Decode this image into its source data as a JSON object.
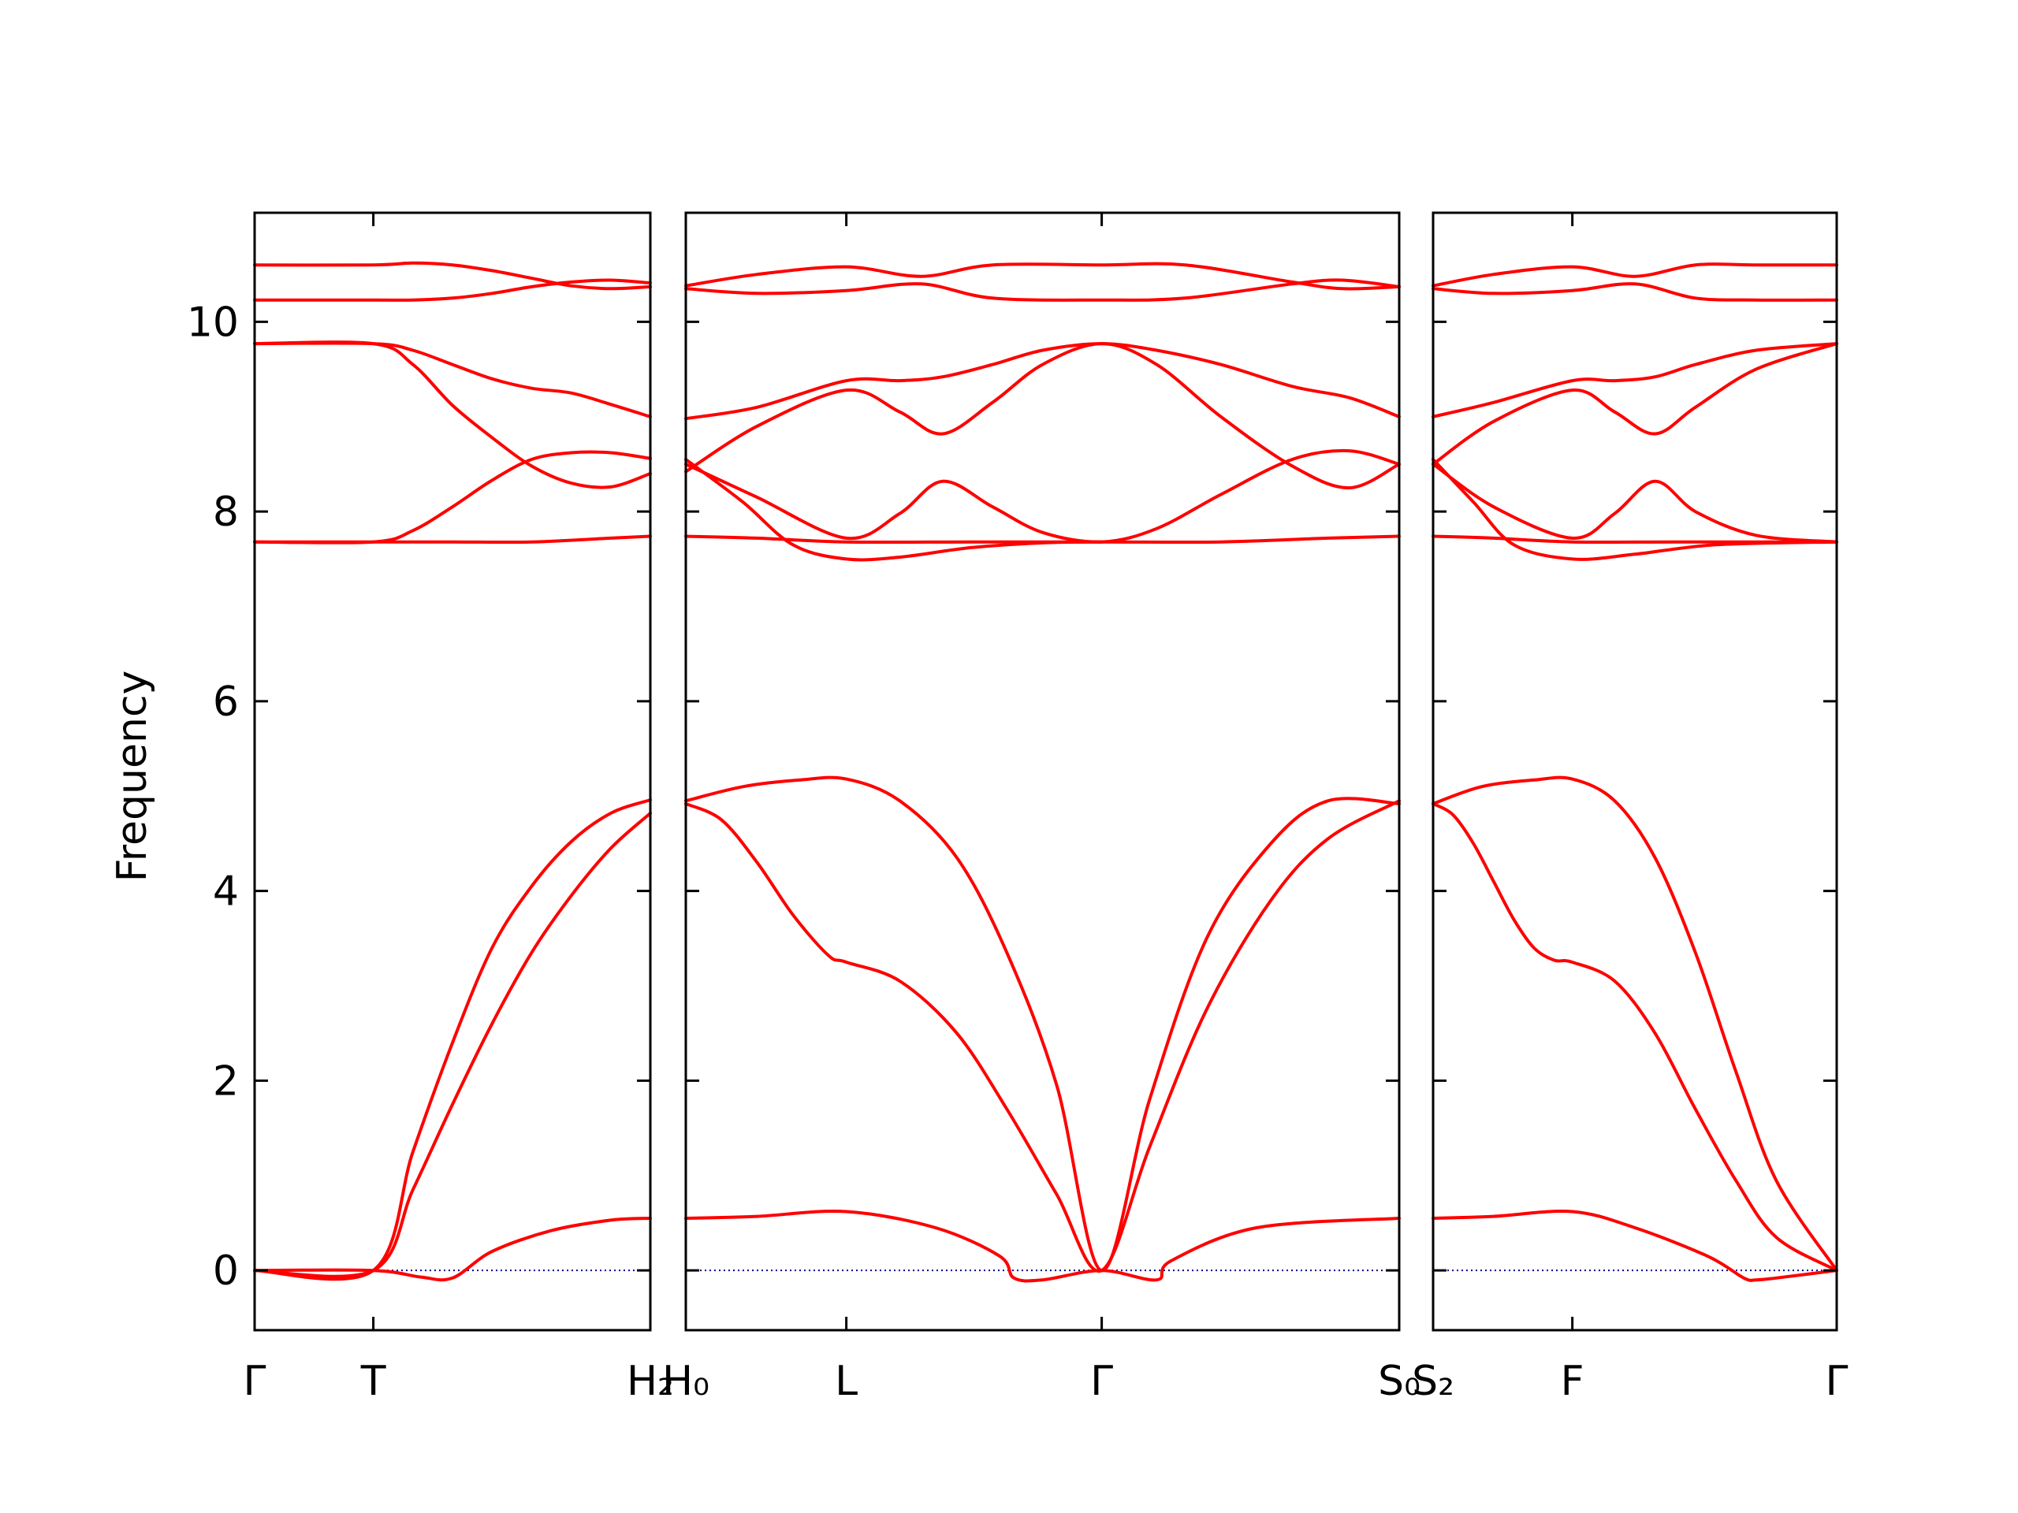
{
  "chart_data": {
    "type": "line",
    "ylabel": "Frequency",
    "ylim": [
      -0.63,
      11.15
    ],
    "yticks": [
      0,
      2,
      4,
      6,
      8,
      10
    ],
    "ytick_labels": [
      "0",
      "2",
      "4",
      "6",
      "8",
      "10"
    ],
    "grid": false,
    "colors": {
      "bands": "#ff0000",
      "zero_line": "#00008b",
      "axes": "#000000"
    },
    "panels": [
      {
        "name": "panel-1",
        "xlim": [
          0,
          1
        ],
        "xticks": [
          0,
          0.3,
          1
        ],
        "xtick_labels": [
          "Γ",
          "T",
          "H₂"
        ],
        "bands": [
          {
            "x": [
              0,
              0.3,
              0.42,
              0.5,
              0.6,
              0.75,
              0.9,
              1
            ],
            "y": [
              0,
              0,
              -0.07,
              -0.08,
              0.2,
              0.42,
              0.53,
              0.55
            ]
          },
          {
            "x": [
              0,
              0.3,
              0.4,
              0.5,
              0.6,
              0.7,
              0.8,
              0.9,
              1
            ],
            "y": [
              0,
              0,
              1.25,
              2.4,
              3.4,
              4.05,
              4.52,
              4.82,
              4.96
            ]
          },
          {
            "x": [
              0,
              0.3,
              0.4,
              0.5,
              0.6,
              0.7,
              0.8,
              0.9,
              1
            ],
            "y": [
              0,
              0,
              0.85,
              1.75,
              2.6,
              3.35,
              3.95,
              4.45,
              4.82
            ]
          },
          {
            "x": [
              0,
              0.3,
              0.5,
              0.7,
              0.9,
              1
            ],
            "y": [
              7.68,
              7.68,
              7.68,
              7.68,
              7.72,
              7.74
            ]
          },
          {
            "x": [
              0,
              0.3,
              0.4,
              0.5,
              0.6,
              0.7,
              0.8,
              0.9,
              1
            ],
            "y": [
              7.68,
              7.68,
              7.8,
              8.05,
              8.33,
              8.55,
              8.62,
              8.62,
              8.56
            ]
          },
          {
            "x": [
              0,
              0.3,
              0.4,
              0.5,
              0.6,
              0.7,
              0.8,
              0.9,
              1
            ],
            "y": [
              9.77,
              9.77,
              9.55,
              9.12,
              8.78,
              8.48,
              8.3,
              8.26,
              8.4
            ]
          },
          {
            "x": [
              0,
              0.3,
              0.4,
              0.5,
              0.6,
              0.7,
              0.8,
              0.9,
              1
            ],
            "y": [
              9.77,
              9.77,
              9.7,
              9.55,
              9.4,
              9.3,
              9.25,
              9.13,
              9.0
            ]
          },
          {
            "x": [
              0,
              0.3,
              0.4,
              0.5,
              0.6,
              0.7,
              0.8,
              0.9,
              1
            ],
            "y": [
              10.23,
              10.23,
              10.23,
              10.25,
              10.3,
              10.37,
              10.42,
              10.44,
              10.41
            ]
          },
          {
            "x": [
              0,
              0.3,
              0.4,
              0.5,
              0.6,
              0.7,
              0.8,
              0.9,
              1
            ],
            "y": [
              10.6,
              10.6,
              10.62,
              10.6,
              10.54,
              10.46,
              10.38,
              10.35,
              10.37
            ]
          }
        ]
      },
      {
        "name": "panel-2",
        "xlim": [
          0,
          1
        ],
        "xticks": [
          0,
          0.225,
          0.583,
          1
        ],
        "xtick_labels": [
          "H₀",
          "L",
          "Γ",
          "S₀"
        ],
        "bands": [
          {
            "x": [
              0,
              0.1,
              0.225,
              0.35,
              0.44,
              0.46,
              0.5,
              0.583,
              0.66,
              0.68,
              0.8,
              1
            ],
            "y": [
              0.55,
              0.57,
              0.62,
              0.45,
              0.15,
              -0.08,
              -0.1,
              0,
              -0.1,
              0.1,
              0.45,
              0.55
            ]
          },
          {
            "x": [
              0,
              0.08,
              0.16,
              0.225,
              0.3,
              0.38,
              0.45,
              0.52,
              0.583,
              0.65,
              0.73,
              0.82,
              0.9,
              1
            ],
            "y": [
              4.95,
              5.1,
              5.17,
              5.18,
              4.95,
              4.35,
              3.35,
              1.95,
              0,
              1.8,
              3.5,
              4.5,
              4.95,
              4.92
            ]
          },
          {
            "x": [
              0,
              0.05,
              0.1,
              0.15,
              0.2,
              0.225,
              0.3,
              0.38,
              0.45,
              0.52,
              0.583,
              0.65,
              0.73,
              0.82,
              0.9,
              1
            ],
            "y": [
              4.92,
              4.75,
              4.3,
              3.75,
              3.32,
              3.25,
              3.05,
              2.5,
              1.7,
              0.8,
              0,
              1.3,
              2.75,
              3.9,
              4.55,
              4.95
            ]
          },
          {
            "x": [
              0,
              0.1,
              0.225,
              0.4,
              0.583,
              0.75,
              0.9,
              1
            ],
            "y": [
              7.74,
              7.72,
              7.68,
              7.68,
              7.68,
              7.68,
              7.72,
              7.74
            ]
          },
          {
            "x": [
              0,
              0.08,
              0.15,
              0.225,
              0.3,
              0.4,
              0.5,
              0.583
            ],
            "y": [
              8.55,
              8.1,
              7.65,
              7.5,
              7.52,
              7.62,
              7.67,
              7.68
            ]
          },
          {
            "x": [
              0,
              0.1,
              0.225,
              0.3,
              0.36,
              0.43,
              0.5,
              0.583,
              0.66,
              0.75,
              0.85,
              0.93,
              1
            ],
            "y": [
              8.42,
              8.9,
              9.28,
              9.05,
              8.82,
              9.15,
              9.55,
              9.77,
              9.55,
              9.0,
              8.48,
              8.25,
              8.5
            ]
          },
          {
            "x": [
              0,
              0.1,
              0.225,
              0.3,
              0.36,
              0.43,
              0.5,
              0.583,
              0.66,
              0.75,
              0.85,
              0.93,
              1
            ],
            "y": [
              8.98,
              9.1,
              9.38,
              9.38,
              9.42,
              9.55,
              9.7,
              9.77,
              9.7,
              9.55,
              9.32,
              9.2,
              9.0
            ]
          },
          {
            "x": [
              0,
              0.1,
              0.225,
              0.3,
              0.36,
              0.43,
              0.5,
              0.583,
              0.66,
              0.75,
              0.85,
              0.93,
              1
            ],
            "y": [
              8.5,
              8.15,
              7.72,
              7.98,
              8.32,
              8.05,
              7.78,
              7.68,
              7.82,
              8.18,
              8.55,
              8.64,
              8.5
            ]
          },
          {
            "x": [
              0,
              0.1,
              0.225,
              0.33,
              0.43,
              0.583,
              0.7,
              0.85,
              0.92,
              1
            ],
            "y": [
              10.35,
              10.3,
              10.33,
              10.4,
              10.25,
              10.23,
              10.25,
              10.4,
              10.44,
              10.37
            ]
          },
          {
            "x": [
              0,
              0.1,
              0.225,
              0.33,
              0.43,
              0.583,
              0.7,
              0.85,
              0.92,
              1
            ],
            "y": [
              10.38,
              10.5,
              10.58,
              10.48,
              10.6,
              10.6,
              10.6,
              10.42,
              10.35,
              10.37
            ]
          }
        ]
      },
      {
        "name": "panel-3",
        "xlim": [
          0,
          1
        ],
        "xticks": [
          0,
          0.345,
          1
        ],
        "xtick_labels": [
          "S₂",
          "F",
          "Γ"
        ],
        "bands": [
          {
            "x": [
              0,
              0.15,
              0.345,
              0.5,
              0.68,
              0.77,
              0.8,
              0.85,
              1
            ],
            "y": [
              0.55,
              0.57,
              0.62,
              0.45,
              0.15,
              -0.08,
              -0.1,
              -0.08,
              0
            ]
          },
          {
            "x": [
              0,
              0.12,
              0.25,
              0.345,
              0.45,
              0.55,
              0.65,
              0.75,
              0.85,
              1
            ],
            "y": [
              4.92,
              5.1,
              5.17,
              5.18,
              4.95,
              4.35,
              3.35,
              2.1,
              0.95,
              0
            ]
          },
          {
            "x": [
              0,
              0.05,
              0.1,
              0.15,
              0.2,
              0.25,
              0.3,
              0.345,
              0.45,
              0.55,
              0.65,
              0.75,
              0.85,
              1
            ],
            "y": [
              4.92,
              4.8,
              4.5,
              4.1,
              3.7,
              3.4,
              3.27,
              3.25,
              3.05,
              2.5,
              1.7,
              0.95,
              0.35,
              0
            ]
          },
          {
            "x": [
              0,
              0.15,
              0.345,
              0.6,
              1
            ],
            "y": [
              7.74,
              7.72,
              7.68,
              7.68,
              7.68
            ]
          },
          {
            "x": [
              0,
              0.1,
              0.2,
              0.345,
              0.5,
              0.7,
              1
            ],
            "y": [
              8.55,
              8.1,
              7.65,
              7.5,
              7.55,
              7.65,
              7.68
            ]
          },
          {
            "x": [
              0,
              0.15,
              0.345,
              0.45,
              0.55,
              0.65,
              0.8,
              1
            ],
            "y": [
              8.5,
              8.95,
              9.28,
              9.05,
              8.82,
              9.1,
              9.5,
              9.77
            ]
          },
          {
            "x": [
              0,
              0.15,
              0.345,
              0.45,
              0.55,
              0.65,
              0.8,
              1
            ],
            "y": [
              9.0,
              9.15,
              9.38,
              9.38,
              9.42,
              9.55,
              9.7,
              9.77
            ]
          },
          {
            "x": [
              0,
              0.15,
              0.345,
              0.45,
              0.55,
              0.65,
              0.8,
              1
            ],
            "y": [
              8.5,
              8.05,
              7.72,
              7.98,
              8.32,
              8.0,
              7.75,
              7.68
            ]
          },
          {
            "x": [
              0,
              0.15,
              0.345,
              0.5,
              0.65,
              0.8,
              1
            ],
            "y": [
              10.35,
              10.3,
              10.33,
              10.4,
              10.25,
              10.23,
              10.23
            ]
          },
          {
            "x": [
              0,
              0.15,
              0.345,
              0.5,
              0.65,
              0.8,
              1
            ],
            "y": [
              10.38,
              10.5,
              10.58,
              10.48,
              10.6,
              10.6,
              10.6
            ]
          }
        ]
      }
    ]
  }
}
